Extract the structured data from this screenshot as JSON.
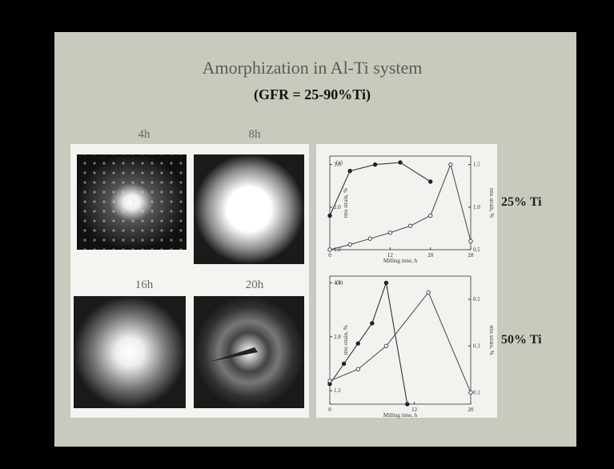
{
  "slide": {
    "title": "Amorphization in Al-Ti system",
    "subtitle": "(GFR = 25-90%Ti)",
    "images": [
      {
        "label": "4h"
      },
      {
        "label": "8h"
      },
      {
        "label": "16h"
      },
      {
        "label": "20h"
      }
    ],
    "compositions": [
      "25% Ti",
      "50% Ti"
    ],
    "plots": [
      {
        "type": "line",
        "label": "(a)",
        "xlabel": "Milling time, h",
        "ylabel": "rms strain, %",
        "y2label": "rms strain, %",
        "xlim": [
          0,
          28
        ],
        "xticks": [
          0,
          12,
          20,
          28
        ],
        "ylim": [
          1.0,
          3.2
        ],
        "yticks": [
          {
            "value": 1,
            "label": "1.0"
          },
          {
            "value": 2,
            "label": "2.0"
          },
          {
            "value": 3,
            "label": "3.0"
          }
        ],
        "y2lim": [
          0.5,
          1.6
        ],
        "y2ticks": [
          0.5,
          {
            "value": 1,
            "label": "1.0"
          },
          1.5
        ],
        "series": [
          {
            "color": "#222222",
            "marker": "filled",
            "x": [
              0,
              4,
              9,
              14,
              20
            ],
            "values": [
              1.8,
              2.85,
              3.0,
              3.05,
              2.6
            ]
          },
          {
            "color": "#444444",
            "marker": "open",
            "axis": "y2",
            "x": [
              0,
              4,
              8,
              12,
              16,
              20,
              24,
              28
            ],
            "values": [
              0.5,
              0.56,
              0.63,
              0.7,
              0.78,
              0.9,
              1.5,
              0.6
            ]
          }
        ]
      },
      {
        "type": "line",
        "label": "(b)",
        "xlabel": "Milling time, h",
        "ylabel": "rms strain, %",
        "y2label": "rms strain, %",
        "xlim": [
          0,
          20
        ],
        "xticks": [
          0,
          12,
          20
        ],
        "ylim": [
          0.8,
          4.6
        ],
        "yticks": [
          1.2,
          2.8,
          4.4
        ],
        "y2lim": [
          0.05,
          0.6
        ],
        "y2ticks": [
          0.1,
          0.3,
          0.5
        ],
        "series": [
          {
            "color": "#222222",
            "marker": "filled",
            "x": [
              0,
              2,
              4,
              6,
              8,
              11
            ],
            "values": [
              1.4,
              2.0,
              2.6,
              3.2,
              4.4,
              0.8
            ]
          },
          {
            "color": "#444444",
            "marker": "open",
            "axis": "y2",
            "x": [
              0,
              4,
              8,
              14,
              20
            ],
            "values": [
              0.15,
              0.2,
              0.3,
              0.53,
              0.1
            ]
          }
        ]
      }
    ]
  }
}
